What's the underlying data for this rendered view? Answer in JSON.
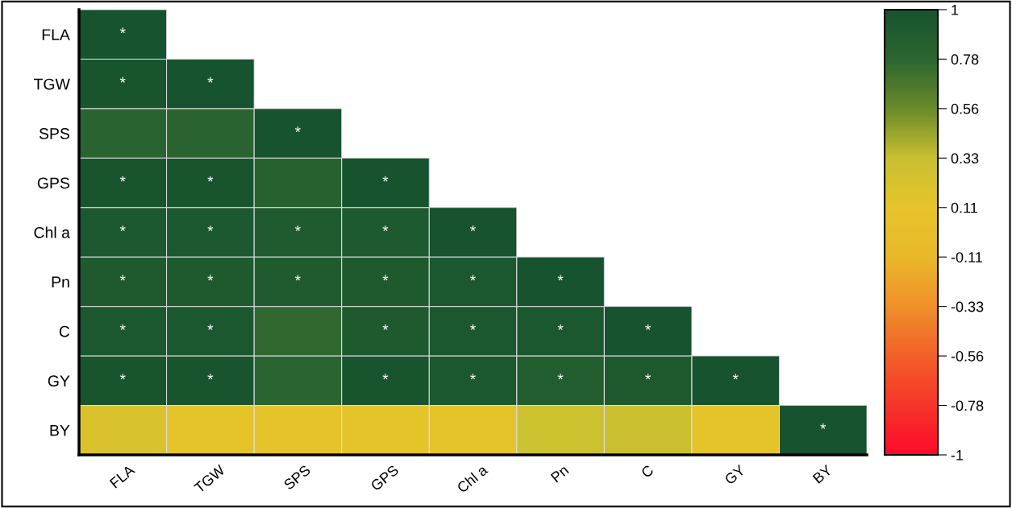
{
  "chart_data": {
    "type": "heatmap",
    "categories": [
      "FLA",
      "TGW",
      "SPS",
      "GPS",
      "Chl a",
      "Pn",
      "C",
      "GY",
      "BY"
    ],
    "y_categories": [
      "FLA",
      "TGW",
      "SPS",
      "GPS",
      "Chl a",
      "Pn",
      "C",
      "GY",
      "BY"
    ],
    "cells": [
      [
        1,
        null,
        null,
        null,
        null,
        null,
        null,
        null,
        null
      ],
      [
        0.98,
        1,
        null,
        null,
        null,
        null,
        null,
        null,
        null
      ],
      [
        0.8,
        0.8,
        1,
        null,
        null,
        null,
        null,
        null,
        null
      ],
      [
        0.98,
        0.98,
        0.83,
        1,
        null,
        null,
        null,
        null,
        null
      ],
      [
        0.93,
        0.93,
        0.9,
        0.92,
        1,
        null,
        null,
        null,
        null
      ],
      [
        0.91,
        0.91,
        0.9,
        0.91,
        0.93,
        1,
        null,
        null,
        null
      ],
      [
        0.93,
        0.93,
        0.76,
        0.91,
        0.93,
        0.93,
        1,
        null,
        null
      ],
      [
        0.98,
        0.98,
        0.79,
        0.98,
        0.93,
        0.88,
        0.91,
        1,
        null
      ],
      [
        0.2,
        0.12,
        0.1,
        0.12,
        0.12,
        0.3,
        0.32,
        0.12,
        1
      ]
    ],
    "cell_labels": [
      [
        "*",
        null,
        null,
        null,
        null,
        null,
        null,
        null,
        null
      ],
      [
        "*",
        "*",
        null,
        null,
        null,
        null,
        null,
        null,
        null
      ],
      [
        null,
        null,
        "*",
        null,
        null,
        null,
        null,
        null,
        null
      ],
      [
        "*",
        "*",
        null,
        "*",
        null,
        null,
        null,
        null,
        null
      ],
      [
        "*",
        "*",
        "*",
        "*",
        "*",
        null,
        null,
        null,
        null
      ],
      [
        "*",
        "*",
        "*",
        "*",
        "*",
        "*",
        null,
        null,
        null
      ],
      [
        "*",
        "*",
        null,
        "*",
        "*",
        "*",
        "*",
        null,
        null
      ],
      [
        "*",
        "*",
        null,
        "*",
        "*",
        "*",
        "*",
        "*",
        null
      ],
      [
        null,
        null,
        null,
        null,
        null,
        null,
        null,
        null,
        "*"
      ]
    ],
    "clim": [
      -1,
      1
    ],
    "cticks": [
      -1,
      {
        "value": -0.7778,
        "label": "-0.78"
      },
      {
        "value": -0.5556,
        "label": "-0.56"
      },
      {
        "value": -0.3333,
        "label": "-0.33"
      },
      {
        "value": -0.1111,
        "label": "-0.11"
      },
      {
        "value": 0.1111,
        "label": "0.11"
      },
      {
        "value": 0.3333,
        "label": "0.33"
      },
      {
        "value": 0.5556,
        "label": "0.56"
      },
      {
        "value": 0.7778,
        "label": "0.78"
      },
      1
    ]
  }
}
